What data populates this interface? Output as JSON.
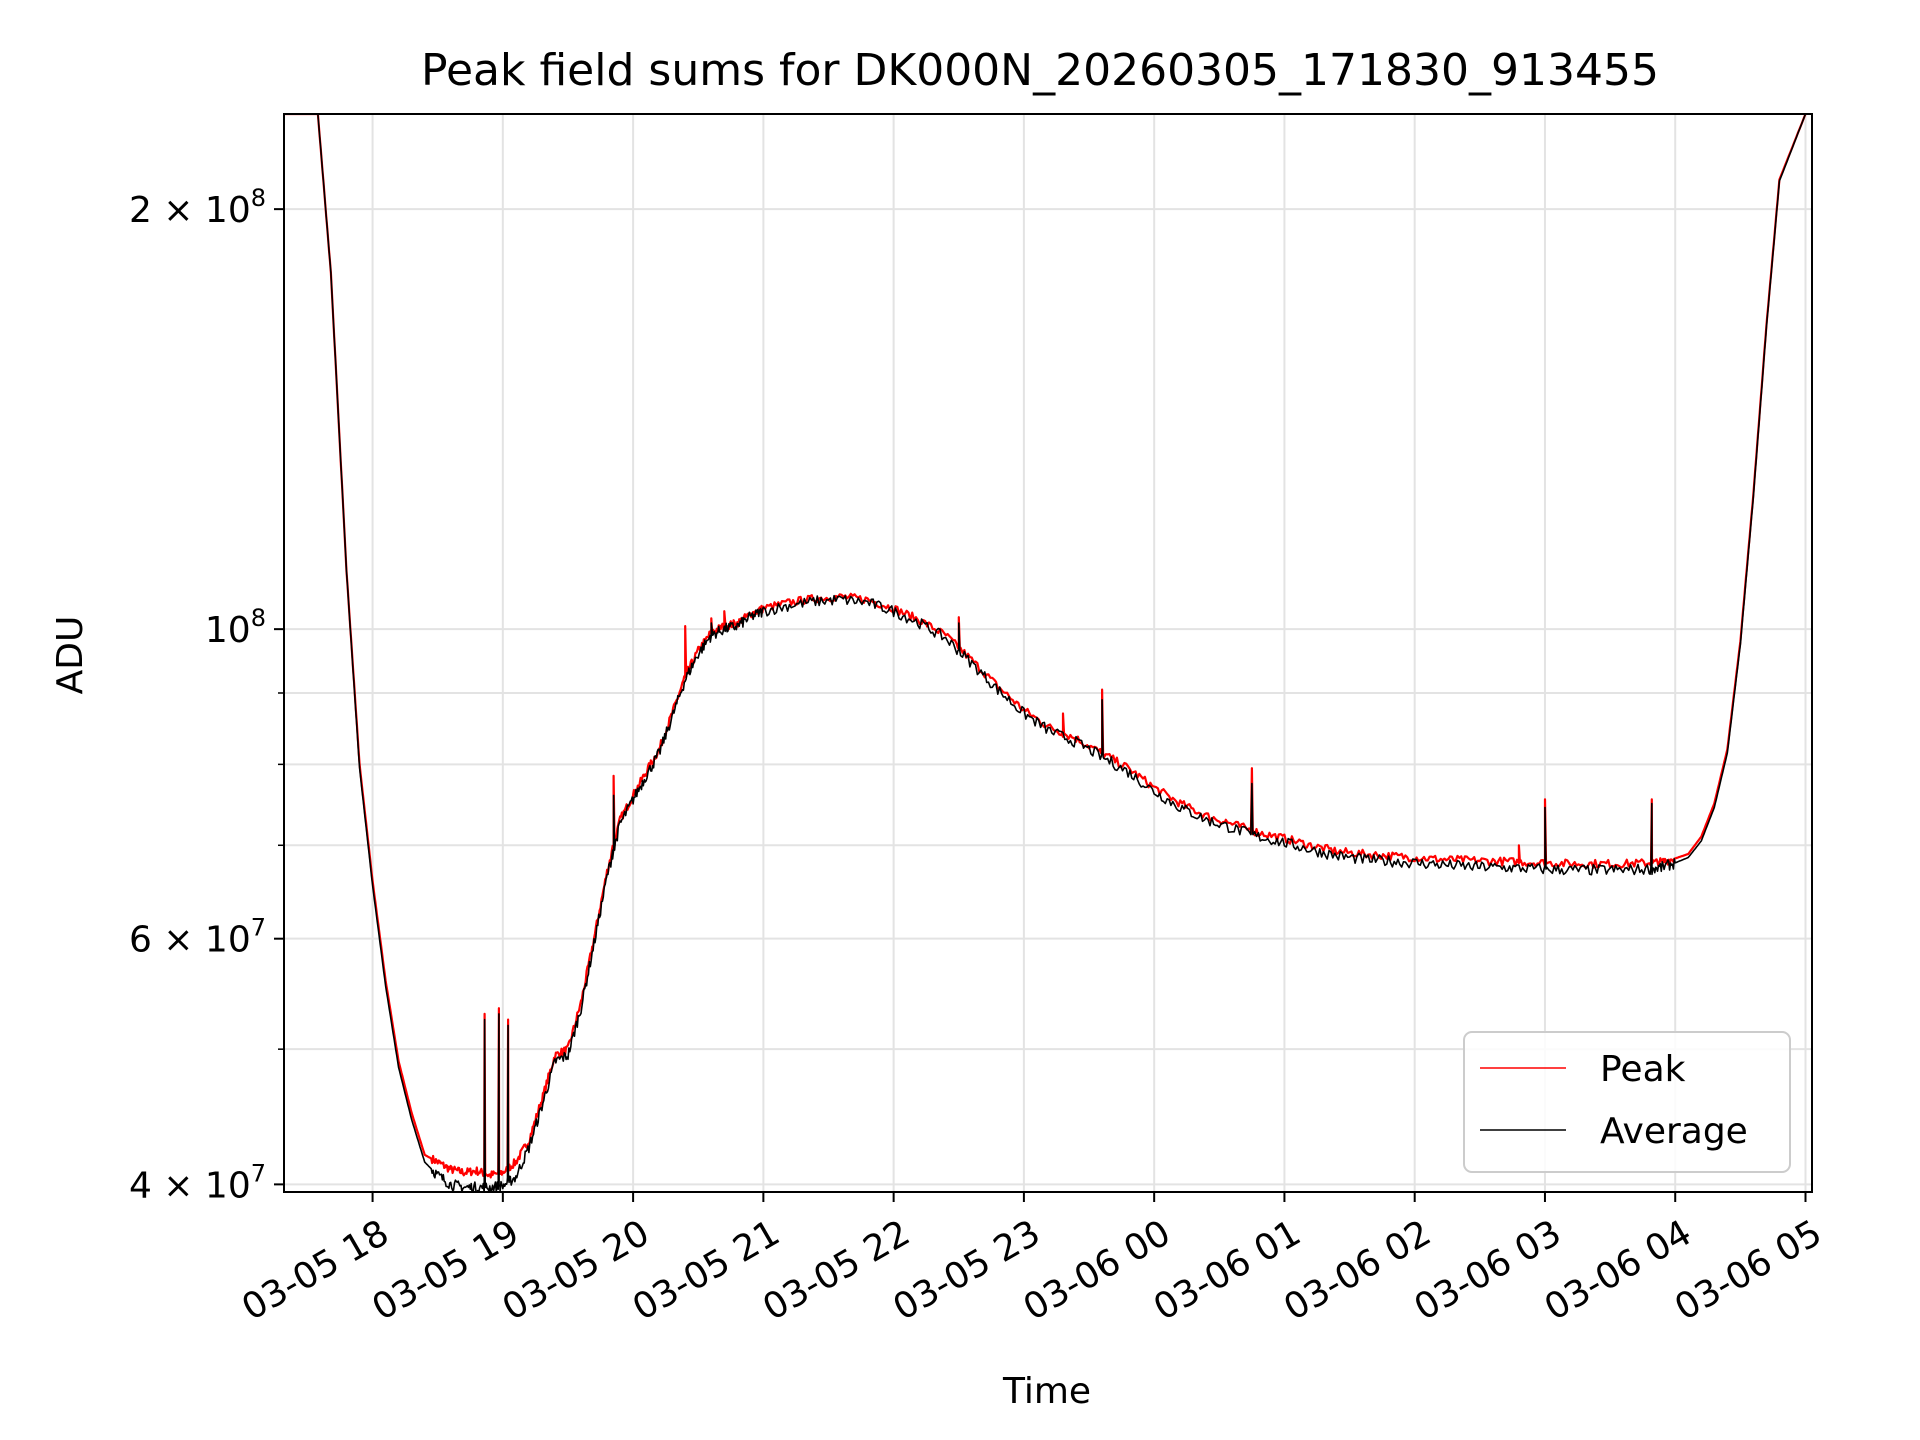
{
  "chart_data": {
    "type": "line",
    "title": "Peak field sums for DK000N_20260305_171830_913455",
    "xlabel": "Time",
    "ylabel": "ADU",
    "yscale": "log",
    "grid": true,
    "legend_position": "bottom-right",
    "xlim": [
      -0.68,
      11.05
    ],
    "ylim": [
      39500000,
      234000000
    ],
    "x_units": "hours since 03-05 18:00",
    "xticks": [
      {
        "value": 0,
        "label": "03-05 18"
      },
      {
        "value": 1,
        "label": "03-05 19"
      },
      {
        "value": 2,
        "label": "03-05 20"
      },
      {
        "value": 3,
        "label": "03-05 21"
      },
      {
        "value": 4,
        "label": "03-05 22"
      },
      {
        "value": 5,
        "label": "03-05 23"
      },
      {
        "value": 6,
        "label": "03-06 00"
      },
      {
        "value": 7,
        "label": "03-06 01"
      },
      {
        "value": 8,
        "label": "03-06 02"
      },
      {
        "value": 9,
        "label": "03-06 03"
      },
      {
        "value": 10,
        "label": "03-06 04"
      },
      {
        "value": 11,
        "label": "03-06 05"
      }
    ],
    "yticks": [
      {
        "value": 40000000,
        "base": "4 × 10",
        "exp": "7"
      },
      {
        "value": 60000000,
        "base": "6 × 10",
        "exp": "7"
      },
      {
        "value": 100000000,
        "base": "10",
        "exp": "8"
      },
      {
        "value": 200000000,
        "base": "2 × 10",
        "exp": "8"
      }
    ],
    "y_minor_ticks": [
      50000000,
      70000000,
      80000000,
      90000000
    ],
    "series": [
      {
        "name": "Peak",
        "color": "#ff0000",
        "x": [
          -0.68,
          -0.42,
          -0.32,
          -0.2,
          -0.1,
          0,
          0.1,
          0.2,
          0.3,
          0.4,
          0.5,
          0.6,
          0.7,
          0.8,
          0.9,
          1,
          1.1,
          1.2,
          1.3,
          1.4,
          1.5,
          1.6,
          1.7,
          1.8,
          1.9,
          2,
          2.1,
          2.2,
          2.3,
          2.4,
          2.5,
          2.6,
          2.7,
          2.8,
          2.9,
          3,
          3.2,
          3.4,
          3.6,
          3.8,
          4,
          4.2,
          4.4,
          4.6,
          4.8,
          5,
          5.2,
          5.4,
          5.6,
          5.8,
          6,
          6.2,
          6.4,
          6.6,
          6.8,
          7,
          7.2,
          7.4,
          7.6,
          7.8,
          8,
          8.2,
          8.4,
          8.6,
          8.8,
          9,
          9.2,
          9.4,
          9.6,
          9.8,
          9.9,
          10,
          10.1,
          10.2,
          10.3,
          10.4,
          10.5,
          10.6,
          10.7,
          10.8,
          11.0
        ],
        "y": [
          234000000,
          234000000,
          180000000,
          110000000,
          80000000,
          66000000,
          56000000,
          49000000,
          45000000,
          42000000,
          41500000,
          41000000,
          40800000,
          40900000,
          40600000,
          40800000,
          41500000,
          43000000,
          46000000,
          49500000,
          50000000,
          54000000,
          60000000,
          67000000,
          73000000,
          76000000,
          79000000,
          82000000,
          87000000,
          92500000,
          96500000,
          99500000,
          100500000,
          101000000,
          102500000,
          103500000,
          104500000,
          105200000,
          105500000,
          105000000,
          103500000,
          101500000,
          99000000,
          95000000,
          91000000,
          87500000,
          85000000,
          83500000,
          81500000,
          79500000,
          77000000,
          75000000,
          73500000,
          72500000,
          71500000,
          70800000,
          70000000,
          69300000,
          69000000,
          68800000,
          68600000,
          68400000,
          68300000,
          68200000,
          68100000,
          68000000,
          67900000,
          67900000,
          67900000,
          68000000,
          68100000,
          68500000,
          69000000,
          71000000,
          75000000,
          82000000,
          98000000,
          125000000,
          165000000,
          210000000,
          234000000
        ],
        "spikes": [
          {
            "x": 0.86,
            "y": 53000000
          },
          {
            "x": 0.97,
            "y": 53500000
          },
          {
            "x": 1.04,
            "y": 52500000
          },
          {
            "x": 1.85,
            "y": 78500000
          },
          {
            "x": 2.4,
            "y": 100500000
          },
          {
            "x": 2.6,
            "y": 101800000
          },
          {
            "x": 2.7,
            "y": 103000000
          },
          {
            "x": 4.5,
            "y": 102000000
          },
          {
            "x": 5.3,
            "y": 87000000
          },
          {
            "x": 5.6,
            "y": 90500000
          },
          {
            "x": 6.55,
            "y": 73000000
          },
          {
            "x": 6.75,
            "y": 79500000
          },
          {
            "x": 8.8,
            "y": 70000000
          },
          {
            "x": 9.0,
            "y": 75500000
          },
          {
            "x": 9.82,
            "y": 75500000
          }
        ]
      },
      {
        "name": "Average",
        "color": "#000000",
        "x": [
          -0.68,
          -0.42,
          -0.32,
          -0.2,
          -0.1,
          0,
          0.1,
          0.2,
          0.3,
          0.4,
          0.5,
          0.6,
          0.7,
          0.8,
          0.9,
          1,
          1.1,
          1.2,
          1.3,
          1.4,
          1.5,
          1.6,
          1.7,
          1.8,
          1.9,
          2,
          2.1,
          2.2,
          2.3,
          2.4,
          2.5,
          2.6,
          2.7,
          2.8,
          2.9,
          3,
          3.2,
          3.4,
          3.6,
          3.8,
          4,
          4.2,
          4.4,
          4.6,
          4.8,
          5,
          5.2,
          5.4,
          5.6,
          5.8,
          6,
          6.2,
          6.4,
          6.6,
          6.8,
          7,
          7.2,
          7.4,
          7.6,
          7.8,
          8,
          8.2,
          8.4,
          8.6,
          8.8,
          9,
          9.2,
          9.4,
          9.6,
          9.8,
          9.9,
          10,
          10.1,
          10.2,
          10.3,
          10.4,
          10.5,
          10.6,
          10.7,
          10.8,
          11.0
        ],
        "y": [
          234000000,
          234000000,
          180000000,
          110000000,
          79500000,
          65500000,
          55500000,
          48500000,
          44500000,
          41500000,
          40600000,
          40000000,
          39800000,
          39800000,
          39800000,
          39900000,
          40500000,
          42500000,
          45500000,
          49000000,
          49500000,
          53500000,
          59500000,
          66500000,
          72500000,
          75500000,
          78500000,
          81500000,
          86500000,
          92000000,
          96000000,
          99000000,
          100000000,
          100500000,
          102000000,
          103000000,
          104000000,
          104700000,
          105000000,
          104500000,
          103000000,
          101000000,
          98500000,
          94500000,
          90500000,
          87000000,
          84500000,
          83000000,
          81000000,
          79000000,
          76500000,
          74500000,
          73000000,
          72000000,
          71000000,
          70300000,
          69500000,
          68800000,
          68400000,
          68200000,
          68000000,
          67800000,
          67600000,
          67500000,
          67400000,
          67300000,
          67200000,
          67200000,
          67200000,
          67300000,
          67500000,
          68000000,
          68600000,
          70500000,
          74500000,
          81500000,
          97500000,
          124500000,
          164500000,
          209500000,
          234000000
        ],
        "spikes": [
          {
            "x": 0.86,
            "y": 52500000
          },
          {
            "x": 0.97,
            "y": 53000000
          },
          {
            "x": 1.04,
            "y": 52000000
          },
          {
            "x": 1.85,
            "y": 76000000
          },
          {
            "x": 2.6,
            "y": 101000000
          },
          {
            "x": 4.5,
            "y": 101000000
          },
          {
            "x": 5.6,
            "y": 89000000
          },
          {
            "x": 6.75,
            "y": 77500000
          },
          {
            "x": 9.0,
            "y": 74500000
          },
          {
            "x": 9.82,
            "y": 75000000
          }
        ]
      }
    ]
  }
}
